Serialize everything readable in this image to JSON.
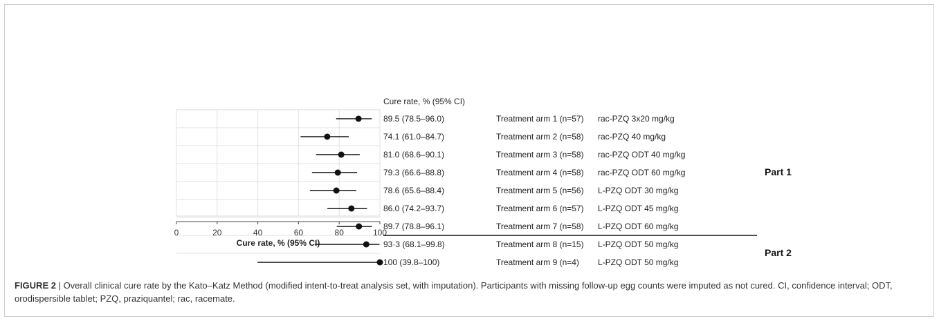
{
  "chart_data": {
    "type": "forest",
    "xlabel": "Cure rate, % (95% CI)",
    "xlim": [
      0,
      100
    ],
    "xticks": [
      0,
      20,
      40,
      60,
      80,
      100
    ],
    "grid": "vertical",
    "column_header": "Cure rate, % (95% CI)",
    "rows": [
      {
        "label": "89.5 (78.5–96.0)",
        "arm": "Treatment arm 1 (n=57)",
        "regimen": "rac-PZQ 3x20 mg/kg",
        "estimate": 89.5,
        "ci_low": 78.5,
        "ci_high": 96.0
      },
      {
        "label": "74.1 (61.0–84.7)",
        "arm": "Treatment arm 2 (n=58)",
        "regimen": "rac-PZQ 40 mg/kg",
        "estimate": 74.1,
        "ci_low": 61.0,
        "ci_high": 84.7
      },
      {
        "label": "81.0 (68.6–90.1)",
        "arm": "Treatment arm 3 (n=58)",
        "regimen": "rac-PZQ ODT 40 mg/kg",
        "estimate": 81.0,
        "ci_low": 68.6,
        "ci_high": 90.1
      },
      {
        "label": "79.3 (66.6–88.8)",
        "arm": "Treatment arm 4 (n=58)",
        "regimen": "rac-PZQ ODT 60 mg/kg",
        "estimate": 79.3,
        "ci_low": 66.6,
        "ci_high": 88.8
      },
      {
        "label": "78.6 (65.6–88.4)",
        "arm": "Treatment arm 5 (n=56)",
        "regimen": "L-PZQ ODT 30 mg/kg",
        "estimate": 78.6,
        "ci_low": 65.6,
        "ci_high": 88.4
      },
      {
        "label": "86.0 (74.2–93.7)",
        "arm": "Treatment arm 6 (n=57)",
        "regimen": "L-PZQ ODT 45 mg/kg",
        "estimate": 86.0,
        "ci_low": 74.2,
        "ci_high": 93.7
      },
      {
        "label": "89.7 (78.8–96.1)",
        "arm": "Treatment arm 7 (n=58)",
        "regimen": "L-PZQ ODT 60 mg/kg",
        "estimate": 89.7,
        "ci_low": 78.8,
        "ci_high": 96.1
      },
      {
        "label": "93·3 (68.1–99.8)",
        "arm": "Treatment arm 8 (n=15)",
        "regimen": "L-PZQ ODT 50 mg/kg",
        "estimate": 93.3,
        "ci_low": 68.1,
        "ci_high": 99.8
      },
      {
        "label": "100 (39.8–100)",
        "arm": "Treatment arm 9 (n=4)",
        "regimen": "L-PZQ ODT 50 mg/kg",
        "estimate": 100,
        "ci_low": 39.8,
        "ci_high": 100
      }
    ],
    "groups": [
      {
        "label": "Part 1",
        "rows": [
          0,
          6
        ]
      },
      {
        "label": "Part 2",
        "rows": [
          7,
          8
        ]
      }
    ]
  },
  "caption": {
    "lead": "FIGURE 2",
    "text": " | Overall clinical cure rate by the Kato–Katz Method (modified intent-to-treat analysis set, with imputation). Participants with missing follow-up egg counts were imputed as not cured. CI, confidence interval; ODT, orodispersible tablet; PZQ, praziquantel; rac, racemate."
  }
}
